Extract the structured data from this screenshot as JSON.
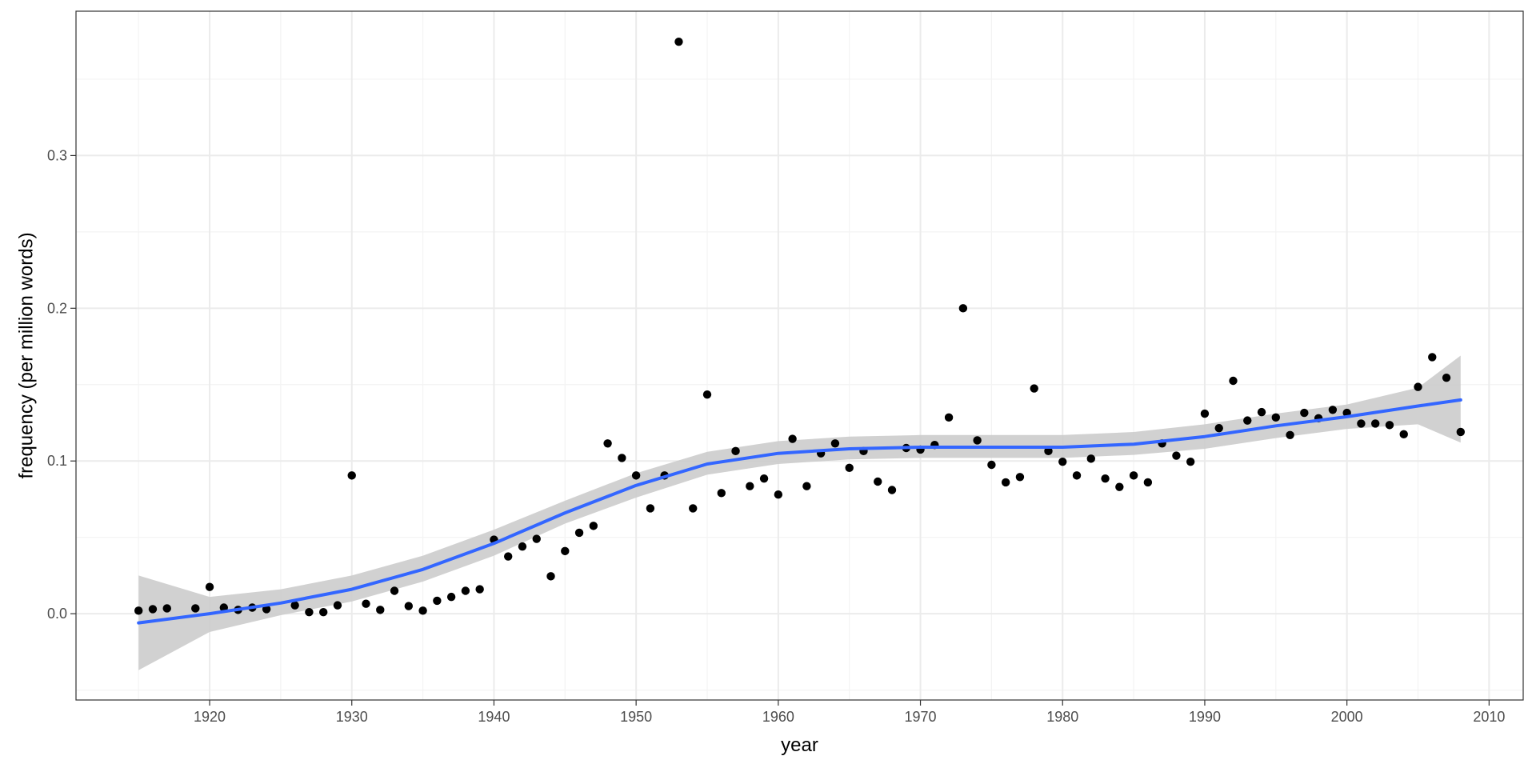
{
  "chart_data": {
    "type": "scatter",
    "title": "",
    "xlabel": "year",
    "ylabel": "frequency (per million words)",
    "xlim": [
      1910.6,
      2012.4
    ],
    "ylim": [
      -0.0565,
      0.3945
    ],
    "x_ticks": [
      1920,
      1930,
      1940,
      1950,
      1960,
      1970,
      1980,
      1990,
      2000,
      2010
    ],
    "x_tick_labels": [
      "1920",
      "1930",
      "1940",
      "1950",
      "1960",
      "1970",
      "1980",
      "1990",
      "2000",
      "2010"
    ],
    "y_ticks": [
      0.0,
      0.1,
      0.2,
      0.3
    ],
    "y_tick_labels": [
      "0.0",
      "0.1",
      "0.2",
      "0.3"
    ],
    "grid": true,
    "series": [
      {
        "kind": "points",
        "x": [
          1915,
          1916,
          1917,
          1919,
          1920,
          1921,
          1922,
          1923,
          1924,
          1926,
          1927,
          1928,
          1929,
          1930,
          1931,
          1932,
          1933,
          1934,
          1935,
          1936,
          1937,
          1938,
          1939,
          1940,
          1941,
          1942,
          1943,
          1944,
          1945,
          1946,
          1947,
          1948,
          1949,
          1950,
          1951,
          1952,
          1953,
          1954,
          1955,
          1956,
          1957,
          1958,
          1959,
          1960,
          1961,
          1962,
          1963,
          1964,
          1965,
          1966,
          1967,
          1968,
          1969,
          1970,
          1971,
          1972,
          1973,
          1974,
          1975,
          1976,
          1977,
          1978,
          1979,
          1980,
          1981,
          1982,
          1983,
          1984,
          1985,
          1986,
          1987,
          1988,
          1989,
          1990,
          1991,
          1992,
          1993,
          1994,
          1995,
          1996,
          1997,
          1998,
          1999,
          2000,
          2001,
          2002,
          2003,
          2004,
          2005,
          2006,
          2007,
          2008
        ],
        "y": [
          0.002,
          0.003,
          0.0035,
          0.0035,
          0.0175,
          0.004,
          0.0025,
          0.004,
          0.003,
          0.0055,
          0.001,
          0.001,
          0.0055,
          0.0905,
          0.0065,
          0.0025,
          0.015,
          0.005,
          0.002,
          0.0085,
          0.011,
          0.015,
          0.016,
          0.0485,
          0.0375,
          0.044,
          0.049,
          0.0245,
          0.041,
          0.053,
          0.0575,
          0.1115,
          0.102,
          0.0905,
          0.069,
          0.0905,
          0.3745,
          0.069,
          0.1435,
          0.079,
          0.1065,
          0.0835,
          0.0885,
          0.078,
          0.1145,
          0.0835,
          0.105,
          0.1115,
          0.0955,
          0.1065,
          0.0865,
          0.081,
          0.1085,
          0.1075,
          0.1105,
          0.1285,
          0.2,
          0.1135,
          0.0975,
          0.086,
          0.0895,
          0.1475,
          0.1065,
          0.0995,
          0.0905,
          0.1015,
          0.0885,
          0.083,
          0.0905,
          0.086,
          0.1115,
          0.1035,
          0.0995,
          0.131,
          0.1215,
          0.1525,
          0.1265,
          0.132,
          0.1285,
          0.117,
          0.1315,
          0.128,
          0.1335,
          0.1315,
          0.1245,
          0.1245,
          0.1235,
          0.1175,
          0.1485,
          0.168,
          0.1545,
          0.119
        ]
      },
      {
        "kind": "smooth",
        "x": [
          1915,
          1920,
          1925,
          1930,
          1935,
          1940,
          1945,
          1950,
          1955,
          1960,
          1965,
          1970,
          1975,
          1980,
          1985,
          1990,
          1995,
          2000,
          2005,
          2008
        ],
        "y": [
          -0.006,
          0.0,
          0.007,
          0.016,
          0.029,
          0.046,
          0.066,
          0.084,
          0.098,
          0.105,
          0.108,
          0.109,
          0.109,
          0.109,
          0.111,
          0.116,
          0.123,
          0.129,
          0.136,
          0.14
        ],
        "ci_lower": [
          -0.037,
          -0.012,
          -0.001,
          0.008,
          0.021,
          0.038,
          0.059,
          0.076,
          0.091,
          0.098,
          0.101,
          0.102,
          0.102,
          0.102,
          0.104,
          0.108,
          0.115,
          0.121,
          0.124,
          0.112
        ],
        "ci_upper": [
          0.025,
          0.011,
          0.016,
          0.025,
          0.038,
          0.055,
          0.074,
          0.092,
          0.106,
          0.113,
          0.116,
          0.117,
          0.117,
          0.117,
          0.119,
          0.124,
          0.131,
          0.137,
          0.148,
          0.169
        ]
      }
    ],
    "colors": {
      "points": "#000000",
      "smooth_line": "#3366ff",
      "ribbon": "#cccccc",
      "grid_major": "#ebebeb",
      "grid_minor": "#f3f3f3",
      "panel_border": "#333333"
    }
  }
}
